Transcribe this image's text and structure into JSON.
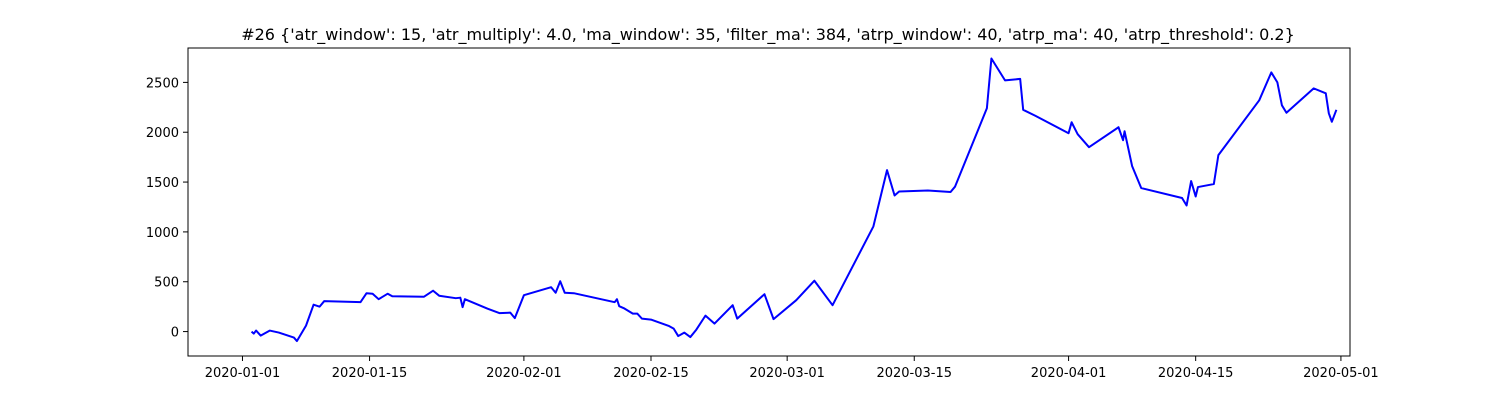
{
  "chart_data": {
    "type": "line",
    "title": "#26 {'atr_window': 15, 'atr_multiply': 4.0, 'ma_window': 35, 'filter_ma': 384, 'atrp_window': 40, 'atrp_ma': 40, 'atrp_threshold': 0.2}",
    "xlabel": "",
    "ylabel": "",
    "x_axis_type": "date",
    "xlim": [
      "2019-12-26",
      "2020-05-02"
    ],
    "ylim": [
      -245,
      2845
    ],
    "grid": false,
    "line_color": "#0000ff",
    "xticks": [
      "2020-01-01",
      "2020-01-15",
      "2020-02-01",
      "2020-02-15",
      "2020-03-01",
      "2020-03-15",
      "2020-04-01",
      "2020-04-15",
      "2020-05-01"
    ],
    "yticks": [
      0,
      500,
      1000,
      1500,
      2000,
      2500
    ],
    "series": [
      {
        "points": [
          {
            "x": "2020-01-02",
            "y": 0
          },
          {
            "x": "2020-01-02 06:00",
            "y": -20
          },
          {
            "x": "2020-01-02 12:00",
            "y": 10
          },
          {
            "x": "2020-01-03",
            "y": -40
          },
          {
            "x": "2020-01-04",
            "y": 10
          },
          {
            "x": "2020-01-05",
            "y": -10
          },
          {
            "x": "2020-01-06",
            "y": -40
          },
          {
            "x": "2020-01-06 16:00",
            "y": -60
          },
          {
            "x": "2020-01-07",
            "y": -95
          },
          {
            "x": "2020-01-08",
            "y": 60
          },
          {
            "x": "2020-01-08 20:00",
            "y": 270
          },
          {
            "x": "2020-01-09 12:00",
            "y": 250
          },
          {
            "x": "2020-01-10",
            "y": 305
          },
          {
            "x": "2020-01-14",
            "y": 295
          },
          {
            "x": "2020-01-14 16:00",
            "y": 385
          },
          {
            "x": "2020-01-15 08:00",
            "y": 380
          },
          {
            "x": "2020-01-16",
            "y": 325
          },
          {
            "x": "2020-01-17",
            "y": 380
          },
          {
            "x": "2020-01-17 12:00",
            "y": 355
          },
          {
            "x": "2020-01-21",
            "y": 350
          },
          {
            "x": "2020-01-22",
            "y": 410
          },
          {
            "x": "2020-01-22 16:00",
            "y": 360
          },
          {
            "x": "2020-01-24 12:00",
            "y": 335
          },
          {
            "x": "2020-01-25",
            "y": 340
          },
          {
            "x": "2020-01-25 06:00",
            "y": 245
          },
          {
            "x": "2020-01-25 12:00",
            "y": 325
          },
          {
            "x": "2020-01-28",
            "y": 230
          },
          {
            "x": "2020-01-29 08:00",
            "y": 185
          },
          {
            "x": "2020-01-30 12:00",
            "y": 190
          },
          {
            "x": "2020-01-31",
            "y": 135
          },
          {
            "x": "2020-02-01",
            "y": 365
          },
          {
            "x": "2020-02-04",
            "y": 445
          },
          {
            "x": "2020-02-04 12:00",
            "y": 390
          },
          {
            "x": "2020-02-05",
            "y": 505
          },
          {
            "x": "2020-02-05 12:00",
            "y": 390
          },
          {
            "x": "2020-02-06 12:00",
            "y": 385
          },
          {
            "x": "2020-02-11",
            "y": 295
          },
          {
            "x": "2020-02-11 06:00",
            "y": 325
          },
          {
            "x": "2020-02-11 12:00",
            "y": 255
          },
          {
            "x": "2020-02-12",
            "y": 235
          },
          {
            "x": "2020-02-13",
            "y": 180
          },
          {
            "x": "2020-02-13 12:00",
            "y": 180
          },
          {
            "x": "2020-02-14",
            "y": 130
          },
          {
            "x": "2020-02-15",
            "y": 120
          },
          {
            "x": "2020-02-17",
            "y": 55
          },
          {
            "x": "2020-02-17 12:00",
            "y": 30
          },
          {
            "x": "2020-02-18",
            "y": -45
          },
          {
            "x": "2020-02-18 16:00",
            "y": -10
          },
          {
            "x": "2020-02-19 08:00",
            "y": -55
          },
          {
            "x": "2020-02-20",
            "y": 20
          },
          {
            "x": "2020-02-21",
            "y": 160
          },
          {
            "x": "2020-02-22",
            "y": 80
          },
          {
            "x": "2020-02-24",
            "y": 265
          },
          {
            "x": "2020-02-24 12:00",
            "y": 130
          },
          {
            "x": "2020-02-27 12:00",
            "y": 375
          },
          {
            "x": "2020-02-28 12:00",
            "y": 125
          },
          {
            "x": "2020-03-02",
            "y": 315
          },
          {
            "x": "2020-03-04",
            "y": 510
          },
          {
            "x": "2020-03-06",
            "y": 265
          },
          {
            "x": "2020-03-10 12:00",
            "y": 1055
          },
          {
            "x": "2020-03-12",
            "y": 1620
          },
          {
            "x": "2020-03-12 20:00",
            "y": 1365
          },
          {
            "x": "2020-03-13 08:00",
            "y": 1405
          },
          {
            "x": "2020-03-16 12:00",
            "y": 1415
          },
          {
            "x": "2020-03-19",
            "y": 1400
          },
          {
            "x": "2020-03-19 12:00",
            "y": 1455
          },
          {
            "x": "2020-03-23",
            "y": 2240
          },
          {
            "x": "2020-03-23 12:00",
            "y": 2740
          },
          {
            "x": "2020-03-25",
            "y": 2520
          },
          {
            "x": "2020-03-26 16:00",
            "y": 2535
          },
          {
            "x": "2020-03-27",
            "y": 2225
          },
          {
            "x": "2020-03-28 08:00",
            "y": 2165
          },
          {
            "x": "2020-04-01",
            "y": 1990
          },
          {
            "x": "2020-04-01 08:00",
            "y": 2100
          },
          {
            "x": "2020-04-02",
            "y": 1980
          },
          {
            "x": "2020-04-03 06:00",
            "y": 1850
          },
          {
            "x": "2020-04-06 12:00",
            "y": 2050
          },
          {
            "x": "2020-04-07",
            "y": 1920
          },
          {
            "x": "2020-04-07 04:00",
            "y": 2010
          },
          {
            "x": "2020-04-08",
            "y": 1660
          },
          {
            "x": "2020-04-09",
            "y": 1440
          },
          {
            "x": "2020-04-13 12:00",
            "y": 1340
          },
          {
            "x": "2020-04-14",
            "y": 1265
          },
          {
            "x": "2020-04-14 12:00",
            "y": 1510
          },
          {
            "x": "2020-04-15",
            "y": 1355
          },
          {
            "x": "2020-04-15 06:00",
            "y": 1450
          },
          {
            "x": "2020-04-17",
            "y": 1480
          },
          {
            "x": "2020-04-17 12:00",
            "y": 1770
          },
          {
            "x": "2020-04-22",
            "y": 2320
          },
          {
            "x": "2020-04-23 08:00",
            "y": 2600
          },
          {
            "x": "2020-04-24",
            "y": 2500
          },
          {
            "x": "2020-04-24 12:00",
            "y": 2270
          },
          {
            "x": "2020-04-25",
            "y": 2195
          },
          {
            "x": "2020-04-28",
            "y": 2440
          },
          {
            "x": "2020-04-29 08:00",
            "y": 2390
          },
          {
            "x": "2020-04-29 16:00",
            "y": 2190
          },
          {
            "x": "2020-04-30",
            "y": 2105
          },
          {
            "x": "2020-04-30 12:00",
            "y": 2225
          }
        ]
      }
    ]
  }
}
